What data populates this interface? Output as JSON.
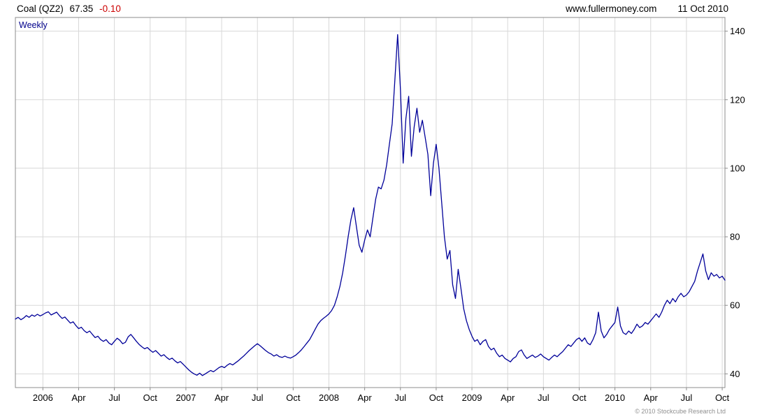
{
  "header": {
    "instrument": "Coal (QZ2)",
    "price": "67.35",
    "change": "-0.10",
    "change_color": "#cc0000",
    "website": "www.fullermoney.com",
    "date": "11 Oct 2010"
  },
  "plot": {
    "timeframe_label": "Weekly",
    "copyright": "© 2010 Stockcube Research Ltd",
    "style": {
      "line_color": "#000099",
      "grid_color": "#d8d8d8",
      "border_color": "#8c8c8c",
      "axis_color": "#8c8c8c",
      "text_color": "#000000",
      "timeframe_color": "#00008b"
    }
  },
  "chart_data": {
    "type": "line",
    "title": "Coal (QZ2) Weekly — last 67.35, change -0.10",
    "xlabel": "",
    "ylabel": "",
    "grid": true,
    "legend": false,
    "ylim": [
      36,
      144
    ],
    "y_ticks": [
      40,
      60,
      80,
      100,
      120,
      140
    ],
    "x_unit": "week",
    "series_name": "Coal (QZ2) weekly close, late 2005 - 11 Oct 2010",
    "x_ticks": [
      {
        "label": "2006",
        "index": 10
      },
      {
        "label": "Apr",
        "index": 23
      },
      {
        "label": "Jul",
        "index": 36
      },
      {
        "label": "Oct",
        "index": 49
      },
      {
        "label": "2007",
        "index": 62
      },
      {
        "label": "Apr",
        "index": 75
      },
      {
        "label": "Jul",
        "index": 88
      },
      {
        "label": "Oct",
        "index": 101
      },
      {
        "label": "2008",
        "index": 114
      },
      {
        "label": "Apr",
        "index": 127
      },
      {
        "label": "Jul",
        "index": 140
      },
      {
        "label": "Oct",
        "index": 153
      },
      {
        "label": "2009",
        "index": 166
      },
      {
        "label": "Apr",
        "index": 179
      },
      {
        "label": "Jul",
        "index": 192
      },
      {
        "label": "Oct",
        "index": 205
      },
      {
        "label": "2010",
        "index": 218
      },
      {
        "label": "Apr",
        "index": 231
      },
      {
        "label": "Jul",
        "index": 244
      },
      {
        "label": "Oct",
        "index": 257
      }
    ],
    "values": [
      56.0,
      56.5,
      55.8,
      56.3,
      57.0,
      56.5,
      57.2,
      56.8,
      57.4,
      56.9,
      57.3,
      57.8,
      58.1,
      57.2,
      57.6,
      58.0,
      57.0,
      56.2,
      56.6,
      55.7,
      54.8,
      55.2,
      54.1,
      53.2,
      53.6,
      52.6,
      52.0,
      52.5,
      51.5,
      50.6,
      51.0,
      50.0,
      49.5,
      50.0,
      49.0,
      48.5,
      49.5,
      50.4,
      49.8,
      48.8,
      49.2,
      50.8,
      51.5,
      50.5,
      49.5,
      48.6,
      47.9,
      47.3,
      47.7,
      46.9,
      46.3,
      46.8,
      46.0,
      45.2,
      45.6,
      44.8,
      44.2,
      44.6,
      43.8,
      43.2,
      43.6,
      42.8,
      42.0,
      41.2,
      40.5,
      40.0,
      39.6,
      40.2,
      39.5,
      40.0,
      40.5,
      41.0,
      40.6,
      41.2,
      41.8,
      42.2,
      41.8,
      42.5,
      43.0,
      42.6,
      43.2,
      43.8,
      44.5,
      45.2,
      46.0,
      46.8,
      47.5,
      48.2,
      48.8,
      48.2,
      47.5,
      46.8,
      46.2,
      45.8,
      45.2,
      45.6,
      45.0,
      44.8,
      45.2,
      44.8,
      44.6,
      45.0,
      45.5,
      46.2,
      47.0,
      48.0,
      49.0,
      50.0,
      51.5,
      53.0,
      54.5,
      55.5,
      56.2,
      56.8,
      57.5,
      58.5,
      60.0,
      62.5,
      65.5,
      69.5,
      74.5,
      80.0,
      85.0,
      88.5,
      83.0,
      77.5,
      75.5,
      79.0,
      82.0,
      80.0,
      85.5,
      91.0,
      94.5,
      94.0,
      96.5,
      101.0,
      107.0,
      113.0,
      126.0,
      139.0,
      123.0,
      101.5,
      114.5,
      121.0,
      103.5,
      112.0,
      117.5,
      110.5,
      114.0,
      109.0,
      104.0,
      92.0,
      101.5,
      107.0,
      100.0,
      90.0,
      80.0,
      73.5,
      76.0,
      66.0,
      62.0,
      70.5,
      65.0,
      59.0,
      55.5,
      53.0,
      51.0,
      49.5,
      50.0,
      48.5,
      49.5,
      50.0,
      48.0,
      47.0,
      47.5,
      46.0,
      45.0,
      45.5,
      44.5,
      44.0,
      43.5,
      44.5,
      45.0,
      46.5,
      47.0,
      45.5,
      44.5,
      45.0,
      45.5,
      44.8,
      45.2,
      45.8,
      45.0,
      44.5,
      44.0,
      44.8,
      45.5,
      45.0,
      45.8,
      46.5,
      47.5,
      48.5,
      48.0,
      49.0,
      50.0,
      50.5,
      49.5,
      50.5,
      49.0,
      48.5,
      50.0,
      52.0,
      58.0,
      52.5,
      50.5,
      51.5,
      53.0,
      54.0,
      55.0,
      59.5,
      54.0,
      52.0,
      51.5,
      52.5,
      51.8,
      53.0,
      54.5,
      53.5,
      54.0,
      55.0,
      54.5,
      55.5,
      56.5,
      57.5,
      56.5,
      58.0,
      60.0,
      61.5,
      60.5,
      62.0,
      61.0,
      62.5,
      63.5,
      62.5,
      63.0,
      64.0,
      65.5,
      67.0,
      70.0,
      72.5,
      75.0,
      70.0,
      67.5,
      69.5,
      68.5,
      69.0,
      68.0,
      68.5,
      67.35
    ]
  }
}
